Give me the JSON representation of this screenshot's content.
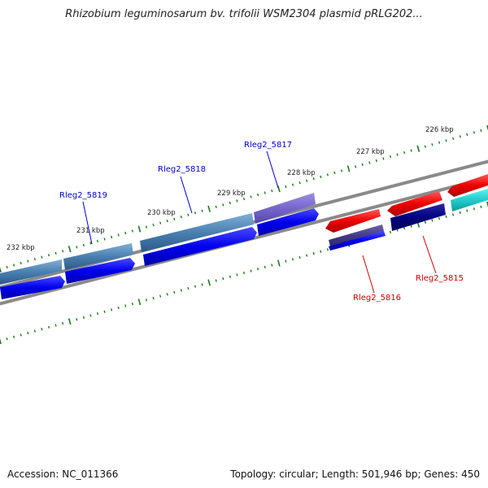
{
  "title": "Rhizobium leguminosarum bv. trifolii WSM2304 plasmid pRLG202...",
  "footer": {
    "accession": "Accession: NC_011366",
    "summary": "Topology: circular; Length: 501,946 bp; Genes: 450"
  },
  "ruler_labels": [
    {
      "id": "232",
      "text": "232 kbp"
    },
    {
      "id": "231",
      "text": "231 kbp"
    },
    {
      "id": "230",
      "text": "230 kbp"
    },
    {
      "id": "229",
      "text": "229 kbp"
    },
    {
      "id": "228",
      "text": "228 kbp"
    },
    {
      "id": "227",
      "text": "227 kbp"
    },
    {
      "id": "226",
      "text": "226 kbp"
    }
  ],
  "gene_labels": [
    {
      "id": "5819",
      "text": "Rleg2_5819",
      "color": "#0000cc"
    },
    {
      "id": "5818",
      "text": "Rleg2_5818",
      "color": "#0000cc"
    },
    {
      "id": "5817",
      "text": "Rleg2_5817",
      "color": "#0000cc"
    },
    {
      "id": "5816",
      "text": "Rleg2_5816",
      "color": "#cc0000"
    },
    {
      "id": "5815",
      "text": "Rleg2_5815",
      "color": "#cc0000"
    }
  ],
  "colors": {
    "cds_forward": "#0000ee",
    "gene_steelblue": "#4a7fb0",
    "gene_purple": "#7766cc",
    "cds_reverse": "#ee0000",
    "gene_navy": "#000080",
    "gene_darkslate": "#443c88",
    "gene_cyan": "#22cccc",
    "backbone": "#888888",
    "ticks": "#1a7a1a"
  }
}
